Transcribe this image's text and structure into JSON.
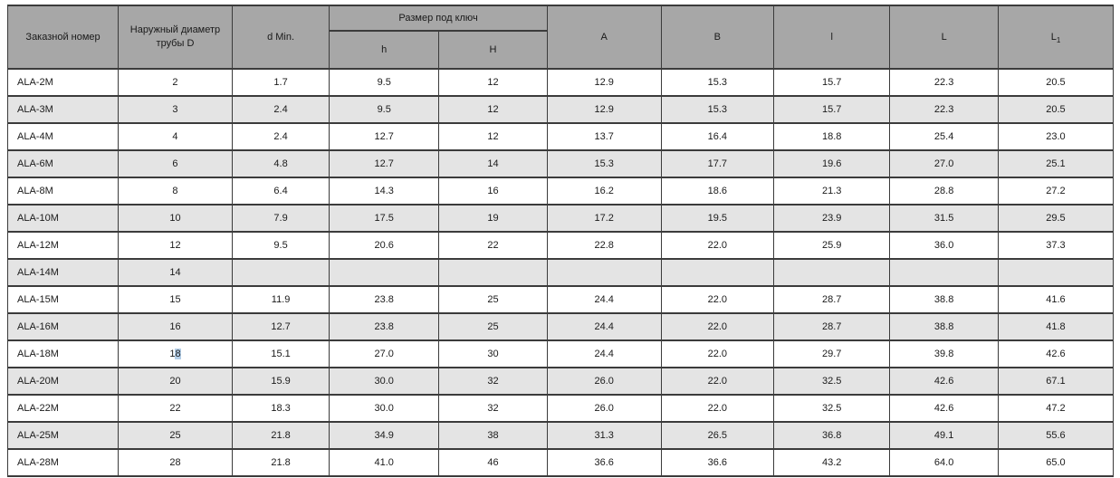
{
  "colors": {
    "header_bg": "#a7a7a7",
    "row_alt_bg": "#e4e4e4",
    "border": "#3b3b3b",
    "selection_bg": "#b5cfe8"
  },
  "table": {
    "header": {
      "order": "Заказной номер",
      "outer_diameter": "Наружный диаметр трубы D",
      "d_min": "d Min.",
      "wrench_group": "Размер под ключ",
      "h_small": "h",
      "h_big": "H",
      "a": "A",
      "b": "B",
      "l_small": "l",
      "l_big": "L",
      "l1_base": "L",
      "l1_sub": "1"
    },
    "column_widths_percent": [
      10,
      10.3,
      8.8,
      9.9,
      9.8,
      10.3,
      10.2,
      10.5,
      9.8,
      10.4
    ],
    "rows": [
      [
        "ALA-2M",
        "2",
        "1.7",
        "9.5",
        "12",
        "12.9",
        "15.3",
        "15.7",
        "22.3",
        "20.5"
      ],
      [
        "ALA-3M",
        "3",
        "2.4",
        "9.5",
        "12",
        "12.9",
        "15.3",
        "15.7",
        "22.3",
        "20.5"
      ],
      [
        "ALA-4M",
        "4",
        "2.4",
        "12.7",
        "12",
        "13.7",
        "16.4",
        "18.8",
        "25.4",
        "23.0"
      ],
      [
        "ALA-6M",
        "6",
        "4.8",
        "12.7",
        "14",
        "15.3",
        "17.7",
        "19.6",
        "27.0",
        "25.1"
      ],
      [
        "ALA-8M",
        "8",
        "6.4",
        "14.3",
        "16",
        "16.2",
        "18.6",
        "21.3",
        "28.8",
        "27.2"
      ],
      [
        "ALA-10M",
        "10",
        "7.9",
        "17.5",
        "19",
        "17.2",
        "19.5",
        "23.9",
        "31.5",
        "29.5"
      ],
      [
        "ALA-12M",
        "12",
        "9.5",
        "20.6",
        "22",
        "22.8",
        "22.0",
        "25.9",
        "36.0",
        "37.3"
      ],
      [
        "ALA-14M",
        "14",
        "",
        "",
        "",
        "",
        "",
        "",
        "",
        ""
      ],
      [
        "ALA-15M",
        "15",
        "11.9",
        "23.8",
        "25",
        "24.4",
        "22.0",
        "28.7",
        "38.8",
        "41.6"
      ],
      [
        "ALA-16M",
        "16",
        "12.7",
        "23.8",
        "25",
        "24.4",
        "22.0",
        "28.7",
        "38.8",
        "41.8"
      ],
      [
        "ALA-18M",
        "18",
        "15.1",
        "27.0",
        "30",
        "24.4",
        "22.0",
        "29.7",
        "39.8",
        "42.6"
      ],
      [
        "ALA-20M",
        "20",
        "15.9",
        "30.0",
        "32",
        "26.0",
        "22.0",
        "32.5",
        "42.6",
        "67.1"
      ],
      [
        "ALA-22M",
        "22",
        "18.3",
        "30.0",
        "32",
        "26.0",
        "22.0",
        "32.5",
        "42.6",
        "47.2"
      ],
      [
        "ALA-25M",
        "25",
        "21.8",
        "34.9",
        "38",
        "31.3",
        "26.5",
        "36.8",
        "49.1",
        "55.6"
      ],
      [
        "ALA-28M",
        "28",
        "21.8",
        "41.0",
        "46",
        "36.6",
        "36.6",
        "43.2",
        "64.0",
        "65.0"
      ]
    ],
    "selection": {
      "row": 10,
      "col": 1,
      "prefix": "1",
      "selected": "8",
      "suffix": ""
    }
  }
}
